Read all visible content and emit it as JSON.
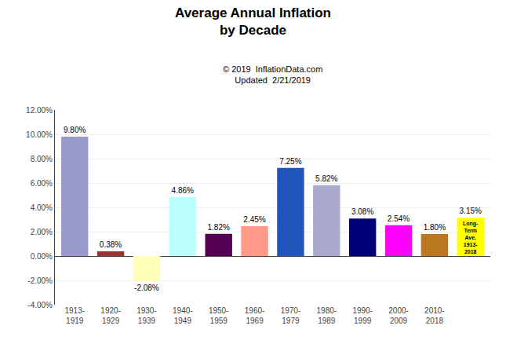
{
  "chart_data": {
    "type": "bar",
    "title": "Average Annual Inflation\nby Decade",
    "subtitle": "© 2019  InflationData.com\nUpdated  2/21/2019",
    "categories": [
      "1913-\n1919",
      "1920-\n1929",
      "1930-\n1939",
      "1940-\n1949",
      "1950-\n1959",
      "1960-\n1969",
      "1970-\n1979",
      "1980-\n1989",
      "1990-\n1999",
      "2000-\n2009",
      "2010-\n2018",
      null
    ],
    "values": [
      9.8,
      0.38,
      -2.08,
      4.86,
      1.82,
      2.45,
      7.25,
      5.82,
      3.08,
      2.54,
      1.8,
      3.15
    ],
    "value_labels": [
      "9.80%",
      "0.38%",
      "-2.08%",
      "4.86%",
      "1.82%",
      "2.45%",
      "7.25%",
      "5.82%",
      "3.08%",
      "2.54%",
      "1.80%",
      "3.15%"
    ],
    "data_labels": true,
    "colors": [
      "#9999CC",
      "#993333",
      "#FFFFBB",
      "#BBFFFF",
      "#550055",
      "#FF9988",
      "#2255BB",
      "#AAAACC",
      "#000077",
      "#FF00FF",
      "#BB7722",
      "#FFFF00"
    ],
    "annotations": [
      "Long-\nTerm\nAve.\n1913-\n2018"
    ],
    "ylim": [
      -4.0,
      12.0
    ],
    "yticks": [
      {
        "value": -4.0,
        "label": "-4.00%"
      },
      {
        "value": -2.0,
        "label": "-2.00%"
      },
      {
        "value": 0.0,
        "label": "0.00%"
      },
      {
        "value": 2.0,
        "label": "2.00%"
      },
      {
        "value": 4.0,
        "label": "4.00%"
      },
      {
        "value": 6.0,
        "label": "6.00%"
      },
      {
        "value": 8.0,
        "label": "8.00%"
      },
      {
        "value": 10.0,
        "label": "10.00%"
      },
      {
        "value": 12.0,
        "label": "12.00%"
      }
    ],
    "grid": true
  }
}
